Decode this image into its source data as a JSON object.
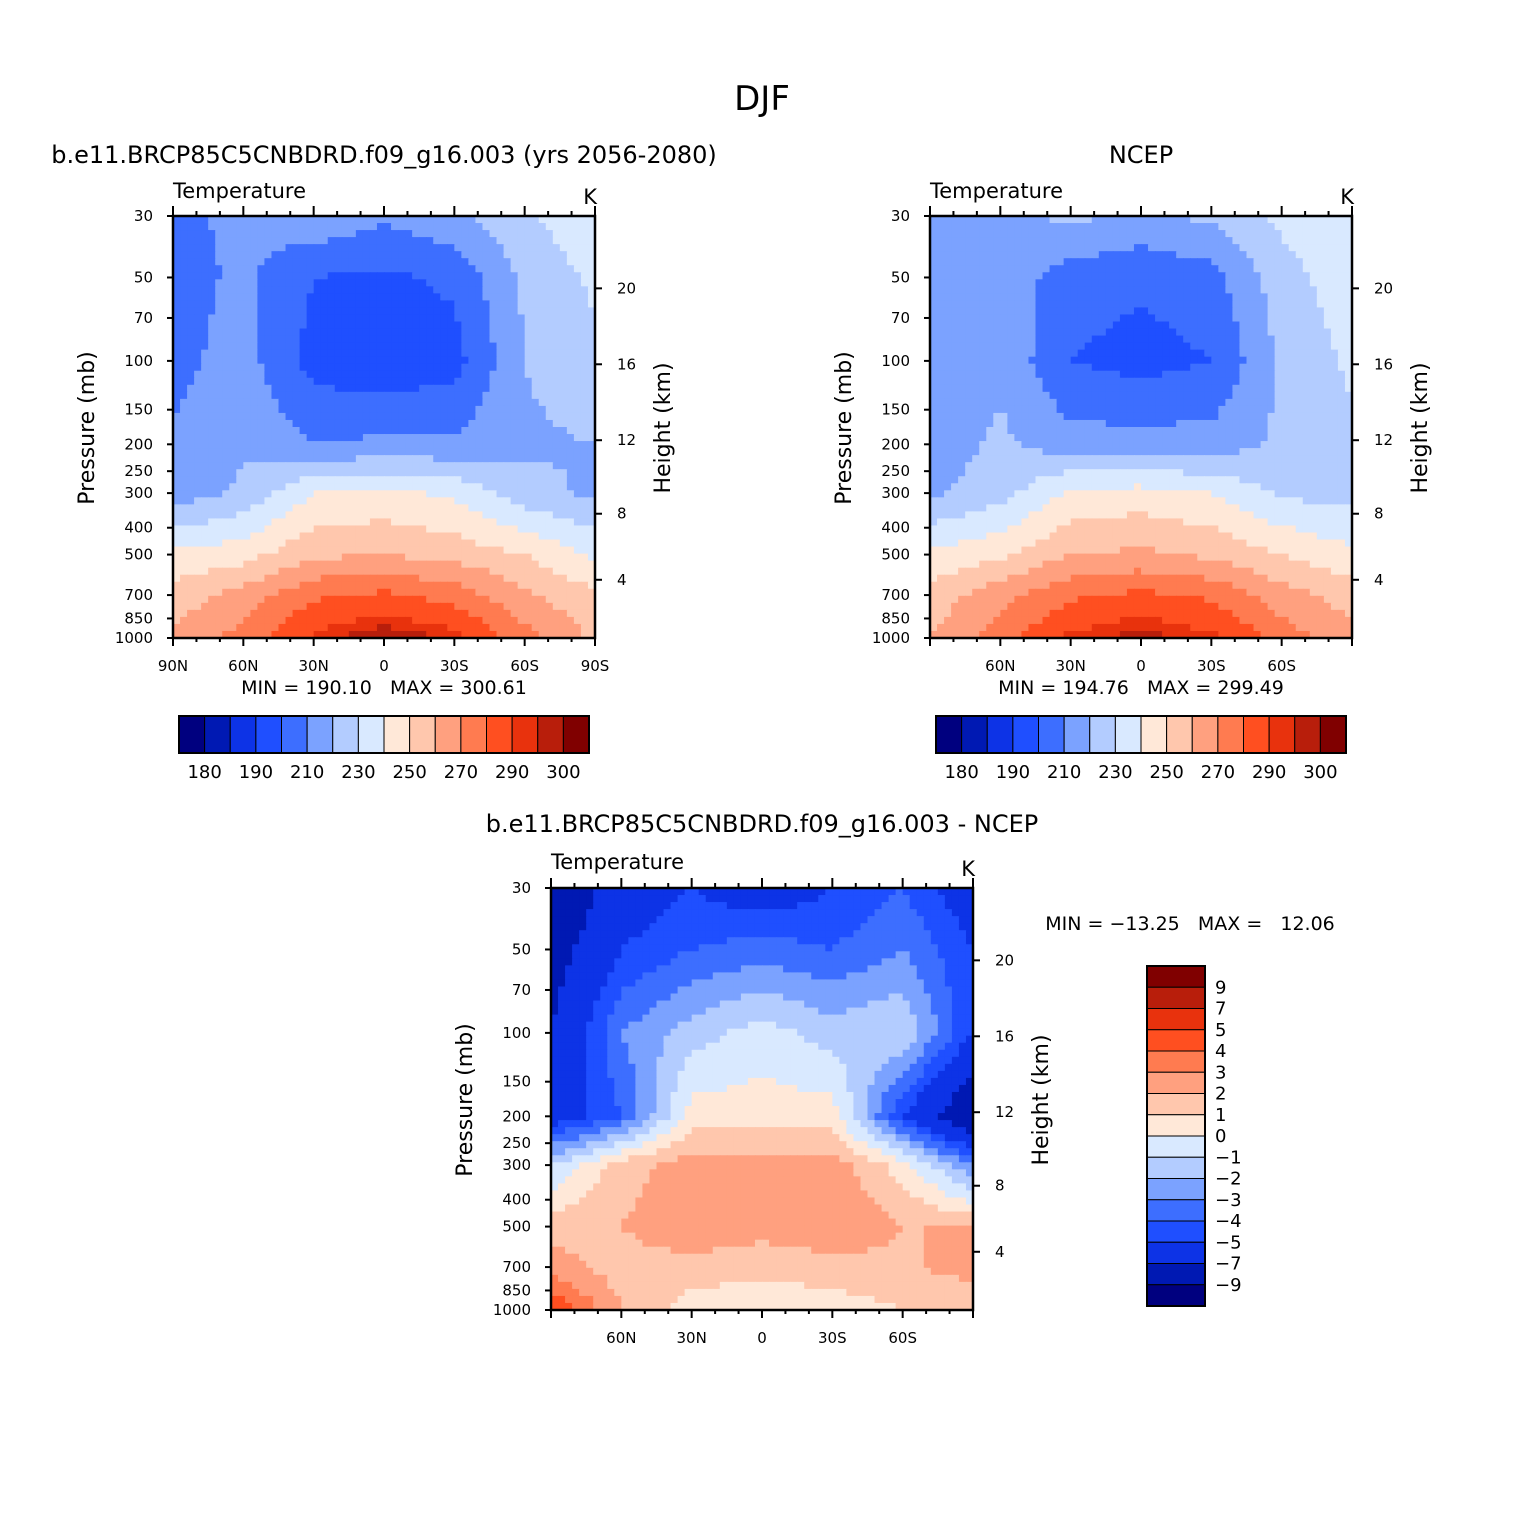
{
  "figure_title": "DJF",
  "chart_data": [
    {
      "type": "heatmap",
      "subtitle": "b.e11.BRCP85C5CNBDRD.f09_g16.003 (yrs 2056-2080)",
      "panel_label": "Temperature",
      "units": "K",
      "ylabel": "Pressure (mb)",
      "ylabel_right": "Height (km)",
      "xticks": [
        "90N",
        "60N",
        "30N",
        "0",
        "30S",
        "60S",
        "90S"
      ],
      "yticks": [
        "30",
        "50",
        "70",
        "100",
        "150",
        "200",
        "250",
        "300",
        "400",
        "500",
        "700",
        "850",
        "1000"
      ],
      "yticks_right": [
        "20",
        "16",
        "12",
        "8",
        "4"
      ],
      "stats": {
        "min": "190.10",
        "max": "300.61",
        "text": "MIN = 190.10   MAX = 300.61"
      },
      "colorbar_labels": [
        "180",
        "190",
        "210",
        "230",
        "250",
        "270",
        "290",
        "300"
      ],
      "field": {
        "lat": [
          90,
          60,
          30,
          0,
          -30,
          -60,
          -90
        ],
        "levels": [
          30,
          50,
          100,
          200,
          300,
          500,
          700,
          1000
        ],
        "values": [
          [
            208,
            212,
            218,
            212,
            218,
            228,
            238
          ],
          [
            206,
            212,
            200,
            198,
            202,
            222,
            232
          ],
          [
            207,
            214,
            196,
            192,
            196,
            220,
            228
          ],
          [
            211,
            219,
            210,
            212,
            212,
            218,
            220
          ],
          [
            214,
            222,
            240,
            242,
            238,
            224,
            218
          ],
          [
            242,
            246,
            258,
            260,
            256,
            250,
            238
          ],
          [
            254,
            264,
            278,
            282,
            276,
            262,
            252
          ],
          [
            262,
            274,
            292,
            300,
            294,
            274,
            258
          ]
        ]
      }
    },
    {
      "type": "heatmap",
      "subtitle": "NCEP",
      "panel_label": "Temperature",
      "units": "K",
      "ylabel": "Pressure (mb)",
      "ylabel_right": "Height (km)",
      "xticks": [
        "60N",
        "30N",
        "0",
        "30S",
        "60S"
      ],
      "yticks": [
        "30",
        "50",
        "70",
        "100",
        "150",
        "200",
        "250",
        "300",
        "400",
        "500",
        "700",
        "850",
        "1000"
      ],
      "yticks_right": [
        "20",
        "16",
        "12",
        "8",
        "4"
      ],
      "stats": {
        "min": "194.76",
        "max": "299.49",
        "text": "MIN = 194.76   MAX = 299.49"
      },
      "colorbar_labels": [
        "180",
        "190",
        "210",
        "230",
        "250",
        "270",
        "290",
        "300"
      ],
      "field": {
        "lat": [
          90,
          60,
          30,
          0,
          -30,
          -60,
          -90
        ],
        "levels": [
          30,
          50,
          100,
          200,
          300,
          500,
          700,
          1000
        ],
        "values": [
          [
            212,
            218,
            222,
            218,
            222,
            232,
            240
          ],
          [
            210,
            216,
            205,
            202,
            206,
            226,
            236
          ],
          [
            210,
            218,
            200,
            196,
            200,
            222,
            232
          ],
          [
            214,
            222,
            214,
            214,
            214,
            222,
            228
          ],
          [
            218,
            226,
            242,
            244,
            240,
            228,
            226
          ],
          [
            242,
            248,
            260,
            262,
            258,
            250,
            242
          ],
          [
            254,
            266,
            278,
            282,
            278,
            264,
            256
          ],
          [
            260,
            276,
            292,
            298,
            292,
            276,
            262
          ]
        ]
      }
    },
    {
      "type": "heatmap",
      "subtitle": "b.e11.BRCP85C5CNBDRD.f09_g16.003 - NCEP",
      "panel_label": "Temperature",
      "units": "K",
      "ylabel": "Pressure (mb)",
      "ylabel_right": "Height (km)",
      "xticks": [
        "60N",
        "30N",
        "0",
        "30S",
        "60S"
      ],
      "yticks": [
        "30",
        "50",
        "70",
        "100",
        "150",
        "200",
        "250",
        "300",
        "400",
        "500",
        "700",
        "850",
        "1000"
      ],
      "yticks_right": [
        "20",
        "16",
        "12",
        "8",
        "4"
      ],
      "stats": {
        "min": "-13.25",
        "max": "12.06",
        "text": "MIN = −13.25   MAX =   12.06"
      },
      "colorbar_labels": [
        "9",
        "7",
        "5",
        "4",
        "3",
        "2",
        "1",
        "0",
        "−1",
        "−2",
        "−3",
        "−4",
        "−5",
        "−7",
        "−9"
      ],
      "field": {
        "lat": [
          90,
          60,
          30,
          0,
          -30,
          -60,
          -90
        ],
        "levels": [
          30,
          50,
          100,
          200,
          300,
          500,
          700,
          1000
        ],
        "values": [
          [
            -9,
            -6,
            -5,
            -6,
            -5,
            -4,
            -6
          ],
          [
            -8,
            -5,
            -4,
            -3.5,
            -4,
            -3,
            -5
          ],
          [
            -7,
            -3,
            -1.5,
            -0.5,
            -1.5,
            -1,
            -5
          ],
          [
            -6,
            -4,
            0.5,
            0.5,
            0.5,
            -5,
            -9
          ],
          [
            -1,
            1.5,
            2.5,
            2.5,
            2.5,
            0.5,
            -3
          ],
          [
            1.5,
            2,
            3,
            2.5,
            3,
            2,
            2
          ],
          [
            2.5,
            1.5,
            1.5,
            1.2,
            1.5,
            1.8,
            2.5
          ],
          [
            5,
            2,
            0.5,
            0.5,
            0.5,
            1,
            1
          ]
        ]
      }
    }
  ],
  "colors": {
    "temp_palette": [
      "#00007f",
      "#0019b3",
      "#0d33e6",
      "#1f4fff",
      "#3d6eff",
      "#7ba2ff",
      "#b3ccff",
      "#d9e9ff",
      "#ffe8d8",
      "#ffc7ad",
      "#ffa07f",
      "#ff7b50",
      "#ff4f20",
      "#e8320d",
      "#b81e0b",
      "#800000"
    ],
    "diff_palette": [
      "#00007f",
      "#0019b3",
      "#0d33e6",
      "#1f4fff",
      "#3d6eff",
      "#7ba2ff",
      "#b3ccff",
      "#d9e9ff",
      "#ffe8d8",
      "#ffc7ad",
      "#ffa07f",
      "#ff7b50",
      "#ff4f20",
      "#e8320d",
      "#b81e0b",
      "#800000"
    ]
  }
}
